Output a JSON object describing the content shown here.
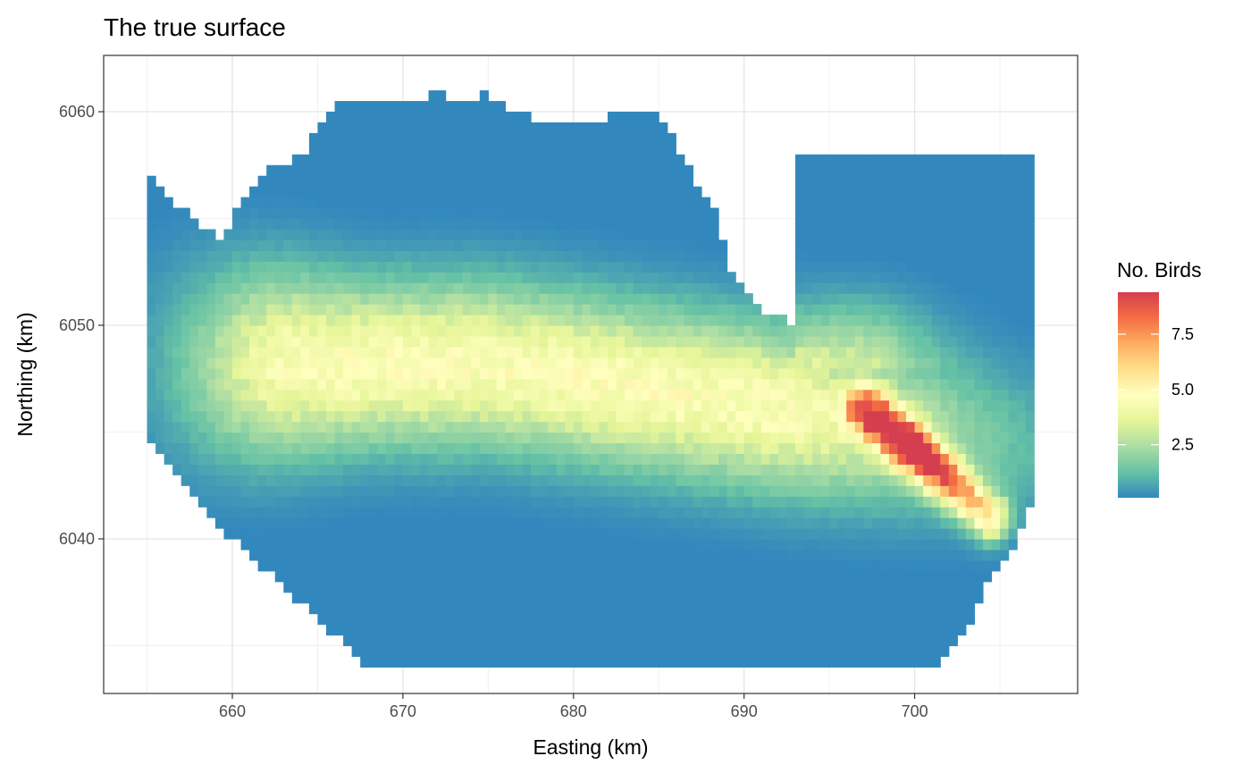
{
  "chart_data": {
    "type": "heatmap",
    "title": "The true surface",
    "xlabel": "Easting (km)",
    "ylabel": "Northing (km)",
    "xlim": [
      652.5,
      709
    ],
    "ylim": [
      6032.8,
      6062.6
    ],
    "x_ticks": [
      660,
      670,
      680,
      690,
      700
    ],
    "x_tick_labels": [
      "660",
      "670",
      "680",
      "690",
      "700"
    ],
    "y_ticks": [
      6040,
      6050,
      6060
    ],
    "y_tick_labels": [
      "6040",
      "6050",
      "6060"
    ],
    "grid": true,
    "legend": {
      "title": "No. Birds",
      "position": "right",
      "breaks": [
        2.5,
        5.0,
        7.5
      ],
      "break_labels": [
        "2.5",
        "5.0",
        "7.5"
      ],
      "range": [
        0.1,
        9.4
      ],
      "palette": [
        "#3288bd",
        "#66c2a5",
        "#abdda4",
        "#e6f598",
        "#ffffbf",
        "#fee08b",
        "#fdae61",
        "#f46d43",
        "#d53e4f"
      ]
    },
    "cell_size_km": 0.5,
    "study_region": {
      "boundary_x": [
        655,
        655.5,
        657,
        658.5,
        659.5,
        660.5,
        662.5,
        664.5,
        665,
        666,
        667,
        668,
        670,
        672,
        673.5,
        675,
        677,
        679,
        681,
        683,
        685,
        686,
        687,
        688.5,
        689,
        690.5,
        693,
        693,
        707,
        707,
        706,
        705.5,
        704,
        703.5,
        702,
        701.5,
        700,
        699,
        697,
        695,
        693,
        691,
        689,
        687,
        685,
        683,
        681,
        679,
        677,
        675,
        673,
        671,
        668,
        666,
        664,
        662,
        660,
        658,
        656.5,
        655
      ],
      "boundary_y": [
        6057,
        6057,
        6055.5,
        6054.5,
        6054,
        6056,
        6057.5,
        6058,
        6059.5,
        6060.2,
        6060.5,
        6060.3,
        6060.6,
        6060.8,
        6060.5,
        6060.8,
        6059.8,
        6059.5,
        6059.4,
        6060,
        6060,
        6058.5,
        6057,
        6055,
        6053,
        6051,
        6050,
        6058,
        6058,
        6042,
        6040,
        6039,
        6038,
        6036,
        6035,
        6034,
        6034,
        6034,
        6034,
        6034,
        6034,
        6034,
        6034,
        6034,
        6034,
        6034,
        6034,
        6034,
        6034,
        6034,
        6034,
        6034,
        6034,
        6035.5,
        6037,
        6038.5,
        6040,
        6041.5,
        6043.5,
        6045
      ]
    },
    "density_model": {
      "description": "Bird counts per cell: a broad east-west band around northing 6046-6049 peaking near easting 665-675 (~4.5), plus a diagonal hotspot from (697, 6046) to (704, 6041) peaking ~9.2 near (700, 6044); background ~0.1.",
      "band": {
        "center_x": 670,
        "center_y": 6048.2,
        "peak": 4.6
      },
      "hotspot_line": {
        "start": [
          697,
          6046.2
        ],
        "end": [
          704.5,
          6041
        ],
        "peak": 9.3
      }
    }
  }
}
